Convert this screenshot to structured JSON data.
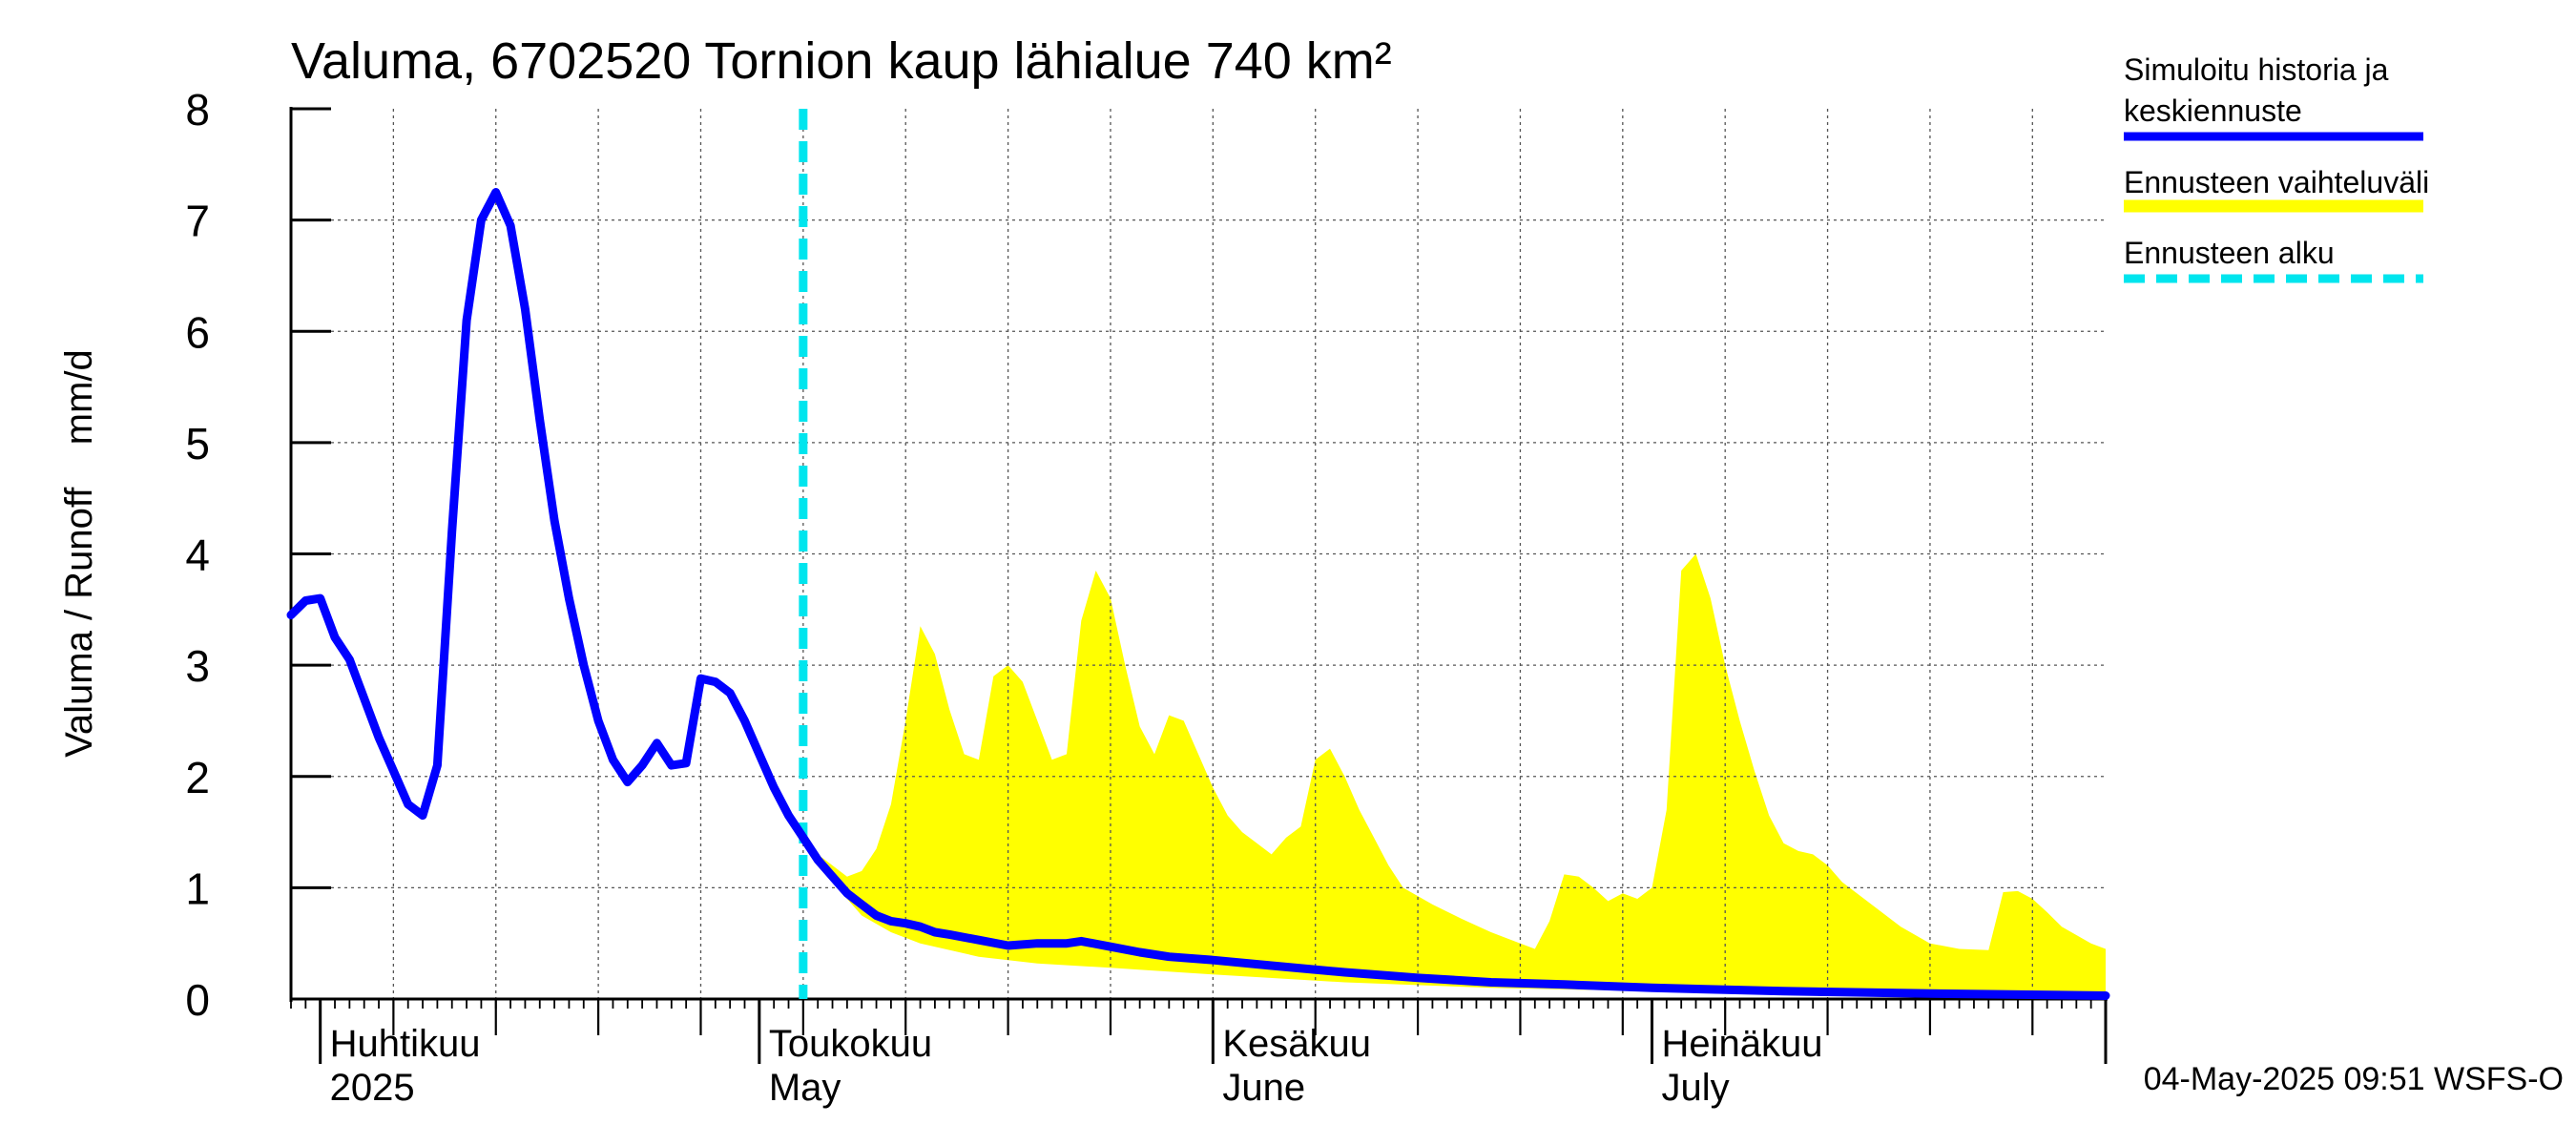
{
  "chart_data": {
    "type": "area",
    "title": "Valuma, 6702520 Tornion kaup lähialue 740 km²",
    "ylabel": "Valuma / Runoff    mm/d",
    "ylim": [
      0,
      8
    ],
    "yticks": [
      0,
      1,
      2,
      3,
      4,
      5,
      6,
      7,
      8
    ],
    "grid": true,
    "legend_position": "top-right, outside plot",
    "x_start": "2025-03-30",
    "x_end": "2025-08-01",
    "forecast_start": "2025-05-04",
    "months": [
      {
        "label_fi": "Huhtikuu",
        "label_en": "2025",
        "date": "2025-04-01"
      },
      {
        "label_fi": "Toukokuu",
        "label_en": "May",
        "date": "2025-05-01"
      },
      {
        "label_fi": "Kesäkuu",
        "label_en": "June",
        "date": "2025-06-01"
      },
      {
        "label_fi": "Heinäkuu",
        "label_en": "July",
        "date": "2025-07-01"
      },
      {
        "label_fi": "",
        "label_en": "",
        "date": "2025-08-01"
      }
    ],
    "series": [
      {
        "name": "Simuloitu historia ja keskiennuste",
        "color": "#0000ff",
        "points": [
          [
            "2025-03-30",
            3.45
          ],
          [
            "2025-03-31",
            3.58
          ],
          [
            "2025-04-01",
            3.6
          ],
          [
            "2025-04-02",
            3.25
          ],
          [
            "2025-04-03",
            3.05
          ],
          [
            "2025-04-04",
            2.7
          ],
          [
            "2025-04-05",
            2.35
          ],
          [
            "2025-04-06",
            2.05
          ],
          [
            "2025-04-07",
            1.75
          ],
          [
            "2025-04-08",
            1.65
          ],
          [
            "2025-04-09",
            2.1
          ],
          [
            "2025-04-10",
            4.2
          ],
          [
            "2025-04-11",
            6.1
          ],
          [
            "2025-04-12",
            7.0
          ],
          [
            "2025-04-13",
            7.25
          ],
          [
            "2025-04-14",
            6.95
          ],
          [
            "2025-04-15",
            6.2
          ],
          [
            "2025-04-16",
            5.2
          ],
          [
            "2025-04-17",
            4.3
          ],
          [
            "2025-04-18",
            3.6
          ],
          [
            "2025-04-19",
            3.0
          ],
          [
            "2025-04-20",
            2.5
          ],
          [
            "2025-04-21",
            2.15
          ],
          [
            "2025-04-22",
            1.95
          ],
          [
            "2025-04-23",
            2.1
          ],
          [
            "2025-04-24",
            2.3
          ],
          [
            "2025-04-25",
            2.1
          ],
          [
            "2025-04-26",
            2.12
          ],
          [
            "2025-04-27",
            2.88
          ],
          [
            "2025-04-28",
            2.85
          ],
          [
            "2025-04-29",
            2.75
          ],
          [
            "2025-04-30",
            2.5
          ],
          [
            "2025-05-01",
            2.2
          ],
          [
            "2025-05-02",
            1.9
          ],
          [
            "2025-05-03",
            1.65
          ],
          [
            "2025-05-04",
            1.45
          ],
          [
            "2025-05-05",
            1.25
          ],
          [
            "2025-05-06",
            1.1
          ],
          [
            "2025-05-07",
            0.95
          ],
          [
            "2025-05-08",
            0.85
          ],
          [
            "2025-05-09",
            0.75
          ],
          [
            "2025-05-10",
            0.7
          ],
          [
            "2025-05-11",
            0.68
          ],
          [
            "2025-05-12",
            0.65
          ],
          [
            "2025-05-13",
            0.6
          ],
          [
            "2025-05-14",
            0.58
          ],
          [
            "2025-05-16",
            0.53
          ],
          [
            "2025-05-18",
            0.48
          ],
          [
            "2025-05-20",
            0.5
          ],
          [
            "2025-05-22",
            0.5
          ],
          [
            "2025-05-23",
            0.52
          ],
          [
            "2025-05-25",
            0.47
          ],
          [
            "2025-05-27",
            0.42
          ],
          [
            "2025-05-29",
            0.38
          ],
          [
            "2025-06-01",
            0.35
          ],
          [
            "2025-06-05",
            0.3
          ],
          [
            "2025-06-10",
            0.24
          ],
          [
            "2025-06-15",
            0.19
          ],
          [
            "2025-06-20",
            0.15
          ],
          [
            "2025-06-25",
            0.13
          ],
          [
            "2025-07-01",
            0.1
          ],
          [
            "2025-07-10",
            0.07
          ],
          [
            "2025-07-20",
            0.05
          ],
          [
            "2025-08-01",
            0.03
          ]
        ]
      },
      {
        "name": "Ennusteen vaihteluväli",
        "color": "#ffff00",
        "upper": [
          [
            "2025-05-04",
            1.45
          ],
          [
            "2025-05-05",
            1.3
          ],
          [
            "2025-05-06",
            1.2
          ],
          [
            "2025-05-07",
            1.1
          ],
          [
            "2025-05-08",
            1.15
          ],
          [
            "2025-05-09",
            1.35
          ],
          [
            "2025-05-10",
            1.75
          ],
          [
            "2025-05-11",
            2.5
          ],
          [
            "2025-05-12",
            3.35
          ],
          [
            "2025-05-13",
            3.1
          ],
          [
            "2025-05-14",
            2.6
          ],
          [
            "2025-05-15",
            2.2
          ],
          [
            "2025-05-16",
            2.15
          ],
          [
            "2025-05-17",
            2.9
          ],
          [
            "2025-05-18",
            3.0
          ],
          [
            "2025-05-19",
            2.85
          ],
          [
            "2025-05-20",
            2.5
          ],
          [
            "2025-05-21",
            2.15
          ],
          [
            "2025-05-22",
            2.2
          ],
          [
            "2025-05-23",
            3.4
          ],
          [
            "2025-05-24",
            3.85
          ],
          [
            "2025-05-25",
            3.6
          ],
          [
            "2025-05-26",
            3.0
          ],
          [
            "2025-05-27",
            2.45
          ],
          [
            "2025-05-28",
            2.2
          ],
          [
            "2025-05-29",
            2.55
          ],
          [
            "2025-05-30",
            2.5
          ],
          [
            "2025-05-31",
            2.2
          ],
          [
            "2025-06-01",
            1.9
          ],
          [
            "2025-06-02",
            1.65
          ],
          [
            "2025-06-03",
            1.5
          ],
          [
            "2025-06-04",
            1.4
          ],
          [
            "2025-06-05",
            1.3
          ],
          [
            "2025-06-06",
            1.45
          ],
          [
            "2025-06-07",
            1.55
          ],
          [
            "2025-06-08",
            2.15
          ],
          [
            "2025-06-09",
            2.25
          ],
          [
            "2025-06-10",
            2.0
          ],
          [
            "2025-06-11",
            1.7
          ],
          [
            "2025-06-12",
            1.45
          ],
          [
            "2025-06-13",
            1.2
          ],
          [
            "2025-06-14",
            1.0
          ],
          [
            "2025-06-16",
            0.85
          ],
          [
            "2025-06-18",
            0.72
          ],
          [
            "2025-06-20",
            0.6
          ],
          [
            "2025-06-22",
            0.5
          ],
          [
            "2025-06-23",
            0.45
          ],
          [
            "2025-06-24",
            0.7
          ],
          [
            "2025-06-25",
            1.12
          ],
          [
            "2025-06-26",
            1.1
          ],
          [
            "2025-06-27",
            1.0
          ],
          [
            "2025-06-28",
            0.88
          ],
          [
            "2025-06-29",
            0.95
          ],
          [
            "2025-06-30",
            0.9
          ],
          [
            "2025-07-01",
            1.0
          ],
          [
            "2025-07-02",
            1.7
          ],
          [
            "2025-07-03",
            3.85
          ],
          [
            "2025-07-04",
            4.0
          ],
          [
            "2025-07-05",
            3.6
          ],
          [
            "2025-07-06",
            3.0
          ],
          [
            "2025-07-07",
            2.5
          ],
          [
            "2025-07-08",
            2.05
          ],
          [
            "2025-07-09",
            1.65
          ],
          [
            "2025-07-10",
            1.4
          ],
          [
            "2025-07-11",
            1.33
          ],
          [
            "2025-07-12",
            1.3
          ],
          [
            "2025-07-13",
            1.2
          ],
          [
            "2025-07-14",
            1.05
          ],
          [
            "2025-07-16",
            0.85
          ],
          [
            "2025-07-18",
            0.65
          ],
          [
            "2025-07-20",
            0.5
          ],
          [
            "2025-07-22",
            0.45
          ],
          [
            "2025-07-24",
            0.44
          ],
          [
            "2025-07-25",
            0.96
          ],
          [
            "2025-07-26",
            0.97
          ],
          [
            "2025-07-27",
            0.9
          ],
          [
            "2025-07-28",
            0.78
          ],
          [
            "2025-07-29",
            0.65
          ],
          [
            "2025-07-31",
            0.5
          ],
          [
            "2025-08-01",
            0.45
          ]
        ],
        "lower": [
          [
            "2025-05-04",
            1.45
          ],
          [
            "2025-05-06",
            1.05
          ],
          [
            "2025-05-08",
            0.75
          ],
          [
            "2025-05-10",
            0.6
          ],
          [
            "2025-05-12",
            0.5
          ],
          [
            "2025-05-16",
            0.38
          ],
          [
            "2025-05-20",
            0.32
          ],
          [
            "2025-05-25",
            0.28
          ],
          [
            "2025-06-01",
            0.22
          ],
          [
            "2025-06-10",
            0.15
          ],
          [
            "2025-06-20",
            0.1
          ],
          [
            "2025-07-01",
            0.07
          ],
          [
            "2025-07-15",
            0.04
          ],
          [
            "2025-08-01",
            0.02
          ]
        ]
      },
      {
        "name": "Ennusteen alku",
        "color": "#00e5ee"
      }
    ],
    "footer": "04-May-2025 09:51 WSFS-O"
  }
}
